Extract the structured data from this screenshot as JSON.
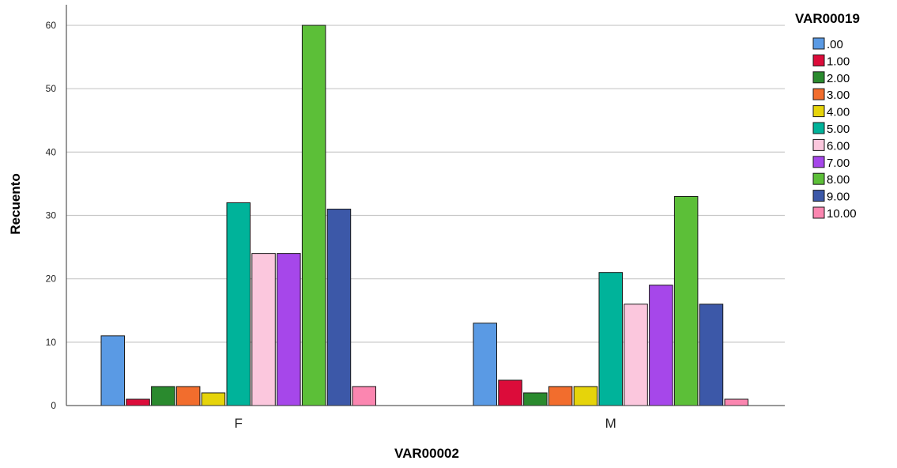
{
  "chart_data": {
    "type": "bar",
    "xlabel": "VAR00002",
    "ylabel": "Recuento",
    "categories": [
      "F",
      "M"
    ],
    "ylim": [
      0,
      63
    ],
    "yticks": [
      0,
      10,
      20,
      30,
      40,
      50,
      60
    ],
    "grid": true,
    "legend_title": "VAR00019",
    "legend_position": "right",
    "series": [
      {
        "name": ".00",
        "color": "#5a9ae4",
        "values": [
          11,
          13
        ]
      },
      {
        "name": "1.00",
        "color": "#dc0c3a",
        "values": [
          1,
          4
        ]
      },
      {
        "name": "2.00",
        "color": "#2a8a2e",
        "values": [
          3,
          2
        ]
      },
      {
        "name": "3.00",
        "color": "#f26d2d",
        "values": [
          3,
          3
        ]
      },
      {
        "name": "4.00",
        "color": "#e6d40a",
        "values": [
          2,
          3
        ]
      },
      {
        "name": "5.00",
        "color": "#00b39a",
        "values": [
          32,
          21
        ]
      },
      {
        "name": "6.00",
        "color": "#fbc7dd",
        "values": [
          24,
          16
        ]
      },
      {
        "name": "7.00",
        "color": "#a647ea",
        "values": [
          24,
          19
        ]
      },
      {
        "name": "8.00",
        "color": "#5cbf38",
        "values": [
          60,
          33
        ]
      },
      {
        "name": "9.00",
        "color": "#3c58a8",
        "values": [
          31,
          16
        ]
      },
      {
        "name": "10.00",
        "color": "#fb86b0",
        "values": [
          3,
          1
        ]
      }
    ]
  }
}
